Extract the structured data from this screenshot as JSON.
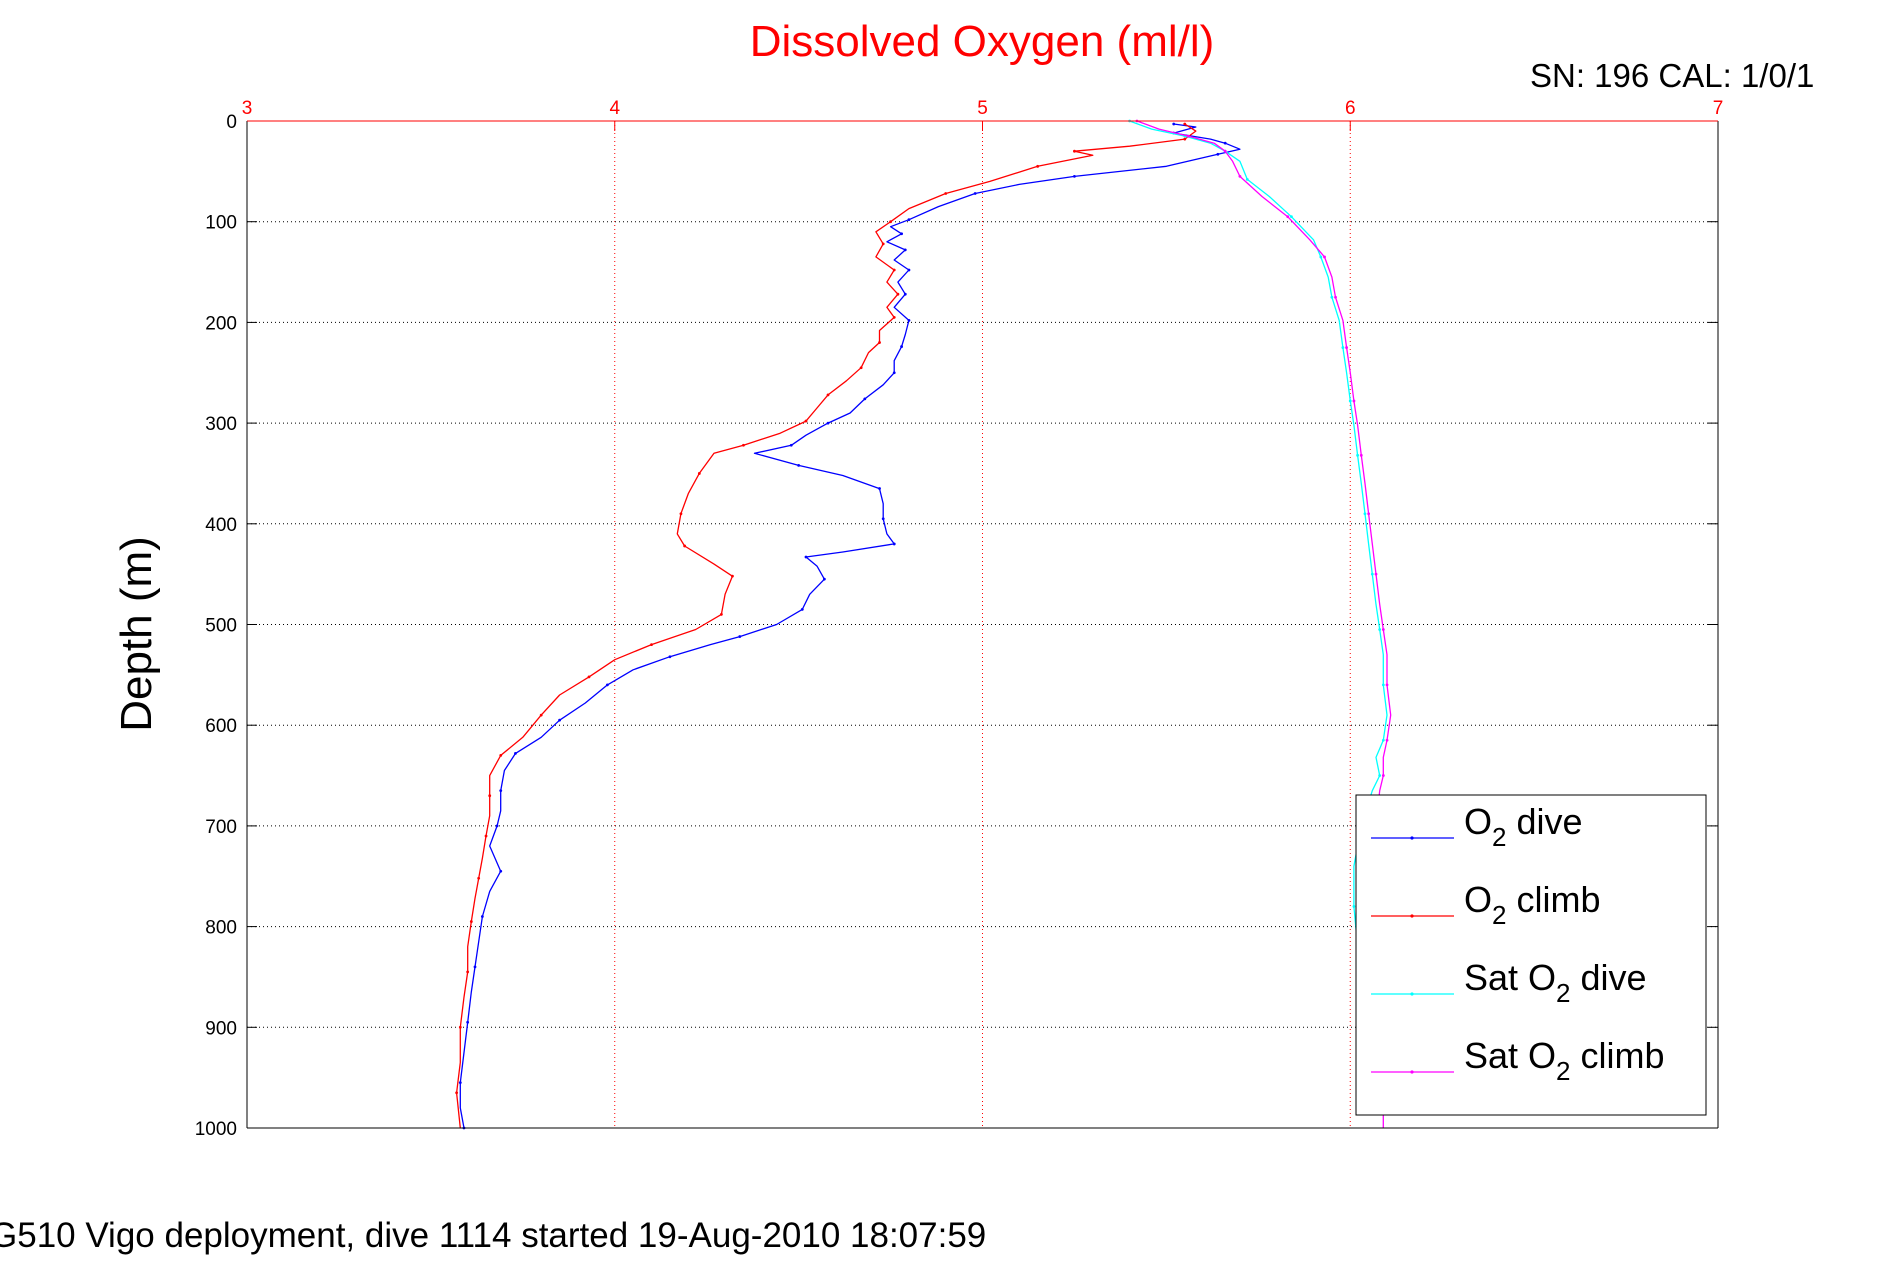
{
  "chart_data": {
    "type": "line",
    "title": "Dissolved Oxygen (ml/l)",
    "ylabel": "Depth (m)",
    "corner_text": "SN: 196  CAL: 1/0/1",
    "footer_text": "G510 Vigo deployment, dive 1114 started 19-Aug-2010 18:07:59",
    "xlim": [
      3,
      7
    ],
    "ylim": [
      0,
      1000
    ],
    "y_reversed": true,
    "x_axis_position": "top",
    "x_ticks": [
      3,
      4,
      5,
      6,
      7
    ],
    "y_ticks": [
      0,
      100,
      200,
      300,
      400,
      500,
      600,
      700,
      800,
      900,
      1000
    ],
    "grid": true,
    "legend_position": "bottom-right",
    "series": [
      {
        "name": "O2 dive",
        "legend_main": "O",
        "legend_sub": "2",
        "legend_rest": " dive",
        "color": "#0000ff",
        "points": [
          [
            5.52,
            3
          ],
          [
            5.58,
            6
          ],
          [
            5.52,
            12
          ],
          [
            5.62,
            18
          ],
          [
            5.66,
            22
          ],
          [
            5.7,
            28
          ],
          [
            5.64,
            33
          ],
          [
            5.5,
            45
          ],
          [
            5.25,
            55
          ],
          [
            5.1,
            63
          ],
          [
            4.98,
            72
          ],
          [
            4.88,
            85
          ],
          [
            4.8,
            98
          ],
          [
            4.75,
            105
          ],
          [
            4.78,
            112
          ],
          [
            4.74,
            120
          ],
          [
            4.79,
            128
          ],
          [
            4.76,
            138
          ],
          [
            4.8,
            148
          ],
          [
            4.77,
            160
          ],
          [
            4.79,
            172
          ],
          [
            4.76,
            185
          ],
          [
            4.8,
            198
          ],
          [
            4.79,
            212
          ],
          [
            4.78,
            224
          ],
          [
            4.76,
            238
          ],
          [
            4.76,
            250
          ],
          [
            4.73,
            262
          ],
          [
            4.68,
            276
          ],
          [
            4.64,
            290
          ],
          [
            4.58,
            300
          ],
          [
            4.52,
            312
          ],
          [
            4.48,
            322
          ],
          [
            4.38,
            330
          ],
          [
            4.5,
            342
          ],
          [
            4.62,
            352
          ],
          [
            4.72,
            365
          ],
          [
            4.73,
            380
          ],
          [
            4.73,
            395
          ],
          [
            4.74,
            410
          ],
          [
            4.76,
            420
          ],
          [
            4.62,
            428
          ],
          [
            4.52,
            433
          ],
          [
            4.55,
            442
          ],
          [
            4.57,
            455
          ],
          [
            4.53,
            470
          ],
          [
            4.51,
            485
          ],
          [
            4.44,
            500
          ],
          [
            4.34,
            512
          ],
          [
            4.26,
            520
          ],
          [
            4.15,
            532
          ],
          [
            4.05,
            545
          ],
          [
            3.98,
            560
          ],
          [
            3.92,
            578
          ],
          [
            3.85,
            595
          ],
          [
            3.8,
            612
          ],
          [
            3.73,
            628
          ],
          [
            3.7,
            645
          ],
          [
            3.69,
            665
          ],
          [
            3.69,
            685
          ],
          [
            3.68,
            700
          ],
          [
            3.66,
            720
          ],
          [
            3.69,
            745
          ],
          [
            3.66,
            765
          ],
          [
            3.64,
            790
          ],
          [
            3.63,
            815
          ],
          [
            3.62,
            840
          ],
          [
            3.61,
            865
          ],
          [
            3.6,
            895
          ],
          [
            3.59,
            925
          ],
          [
            3.58,
            955
          ],
          [
            3.58,
            980
          ],
          [
            3.59,
            1000
          ]
        ]
      },
      {
        "name": "O2 climb",
        "legend_main": "O",
        "legend_sub": "2",
        "legend_rest": " climb",
        "color": "#ff0000",
        "points": [
          [
            5.55,
            3
          ],
          [
            5.58,
            10
          ],
          [
            5.55,
            18
          ],
          [
            5.4,
            25
          ],
          [
            5.25,
            30
          ],
          [
            5.3,
            34
          ],
          [
            5.15,
            45
          ],
          [
            5.02,
            60
          ],
          [
            4.9,
            72
          ],
          [
            4.8,
            87
          ],
          [
            4.75,
            100
          ],
          [
            4.71,
            110
          ],
          [
            4.73,
            122
          ],
          [
            4.71,
            135
          ],
          [
            4.76,
            148
          ],
          [
            4.74,
            160
          ],
          [
            4.77,
            172
          ],
          [
            4.74,
            185
          ],
          [
            4.76,
            195
          ],
          [
            4.72,
            208
          ],
          [
            4.72,
            220
          ],
          [
            4.69,
            230
          ],
          [
            4.67,
            245
          ],
          [
            4.63,
            258
          ],
          [
            4.58,
            272
          ],
          [
            4.55,
            285
          ],
          [
            4.52,
            298
          ],
          [
            4.45,
            310
          ],
          [
            4.35,
            322
          ],
          [
            4.27,
            330
          ],
          [
            4.23,
            350
          ],
          [
            4.2,
            370
          ],
          [
            4.18,
            390
          ],
          [
            4.17,
            410
          ],
          [
            4.19,
            422
          ],
          [
            4.27,
            440
          ],
          [
            4.32,
            452
          ],
          [
            4.3,
            470
          ],
          [
            4.29,
            490
          ],
          [
            4.22,
            505
          ],
          [
            4.1,
            520
          ],
          [
            4.0,
            535
          ],
          [
            3.93,
            552
          ],
          [
            3.85,
            570
          ],
          [
            3.8,
            590
          ],
          [
            3.75,
            612
          ],
          [
            3.69,
            630
          ],
          [
            3.66,
            650
          ],
          [
            3.66,
            670
          ],
          [
            3.66,
            690
          ],
          [
            3.65,
            710
          ],
          [
            3.64,
            732
          ],
          [
            3.63,
            752
          ],
          [
            3.62,
            772
          ],
          [
            3.61,
            795
          ],
          [
            3.6,
            820
          ],
          [
            3.6,
            845
          ],
          [
            3.59,
            870
          ],
          [
            3.58,
            900
          ],
          [
            3.58,
            935
          ],
          [
            3.57,
            965
          ],
          [
            3.58,
            1000
          ]
        ]
      },
      {
        "name": "Sat O2 dive",
        "legend_main": "Sat O",
        "legend_sub": "2",
        "legend_rest": " dive",
        "color": "#00ffff",
        "points": [
          [
            5.4,
            0
          ],
          [
            5.46,
            8
          ],
          [
            5.55,
            15
          ],
          [
            5.62,
            22
          ],
          [
            5.66,
            30
          ],
          [
            5.7,
            40
          ],
          [
            5.72,
            58
          ],
          [
            5.78,
            75
          ],
          [
            5.84,
            95
          ],
          [
            5.9,
            118
          ],
          [
            5.92,
            135
          ],
          [
            5.94,
            155
          ],
          [
            5.95,
            175
          ],
          [
            5.97,
            198
          ],
          [
            5.98,
            225
          ],
          [
            5.99,
            250
          ],
          [
            6.0,
            278
          ],
          [
            6.01,
            302
          ],
          [
            6.02,
            332
          ],
          [
            6.03,
            360
          ],
          [
            6.04,
            390
          ],
          [
            6.05,
            420
          ],
          [
            6.06,
            450
          ],
          [
            6.07,
            480
          ],
          [
            6.08,
            505
          ],
          [
            6.09,
            530
          ],
          [
            6.09,
            560
          ],
          [
            6.1,
            590
          ],
          [
            6.09,
            615
          ],
          [
            6.07,
            632
          ],
          [
            6.08,
            650
          ],
          [
            6.06,
            665
          ],
          [
            6.03,
            700
          ],
          [
            6.01,
            740
          ],
          [
            6.01,
            780
          ],
          [
            6.02,
            820
          ]
        ]
      },
      {
        "name": "Sat O2 climb",
        "legend_main": "Sat O",
        "legend_sub": "2",
        "legend_rest": " climb",
        "color": "#ff00ff",
        "points": [
          [
            5.42,
            0
          ],
          [
            5.48,
            8
          ],
          [
            5.56,
            15
          ],
          [
            5.63,
            22
          ],
          [
            5.66,
            30
          ],
          [
            5.68,
            40
          ],
          [
            5.7,
            55
          ],
          [
            5.76,
            75
          ],
          [
            5.83,
            95
          ],
          [
            5.89,
            118
          ],
          [
            5.93,
            135
          ],
          [
            5.95,
            155
          ],
          [
            5.96,
            175
          ],
          [
            5.98,
            198
          ],
          [
            5.99,
            225
          ],
          [
            6.0,
            250
          ],
          [
            6.01,
            278
          ],
          [
            6.02,
            302
          ],
          [
            6.03,
            332
          ],
          [
            6.04,
            360
          ],
          [
            6.05,
            390
          ],
          [
            6.06,
            420
          ],
          [
            6.07,
            450
          ],
          [
            6.08,
            480
          ],
          [
            6.09,
            505
          ],
          [
            6.1,
            530
          ],
          [
            6.1,
            560
          ],
          [
            6.11,
            590
          ],
          [
            6.1,
            615
          ],
          [
            6.09,
            632
          ],
          [
            6.09,
            650
          ],
          [
            6.08,
            665
          ],
          [
            6.07,
            700
          ],
          [
            6.07,
            740
          ],
          [
            6.07,
            780
          ],
          [
            6.08,
            820
          ],
          [
            6.08,
            860
          ],
          [
            6.08,
            900
          ],
          [
            6.09,
            950
          ],
          [
            6.09,
            1000
          ]
        ]
      }
    ]
  }
}
